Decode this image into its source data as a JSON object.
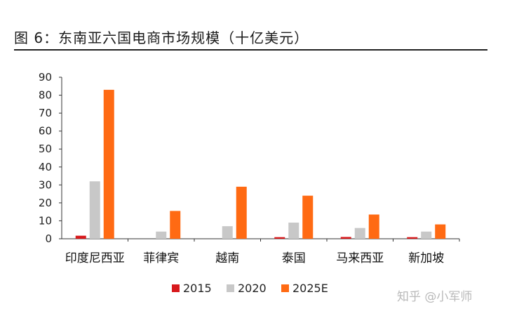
{
  "figure": {
    "title": "图 6：东南亚六国电商市场规模（十亿美元）",
    "watermark": "知乎 @小军师"
  },
  "chart_data": {
    "type": "bar",
    "title": "图 6：东南亚六国电商市场规模（十亿美元）",
    "xlabel": "",
    "ylabel": "",
    "ylim": [
      0,
      90
    ],
    "yticks": [
      0,
      10,
      20,
      30,
      40,
      50,
      60,
      70,
      80,
      90
    ],
    "grid": false,
    "legend_position": "bottom",
    "categories": [
      "印度尼西亚",
      "菲律宾",
      "越南",
      "泰国",
      "马来西亚",
      "新加坡"
    ],
    "series": [
      {
        "name": "2015",
        "color": "#d7191c",
        "values": [
          1.7,
          0,
          0,
          0.9,
          1.0,
          0.9
        ]
      },
      {
        "name": "2020",
        "color": "#c8c8c8",
        "values": [
          32,
          4,
          7,
          9,
          6,
          4
        ]
      },
      {
        "name": "2025E",
        "color": "#ff6a13",
        "values": [
          83,
          15.5,
          29,
          24,
          13.5,
          8
        ]
      }
    ]
  }
}
